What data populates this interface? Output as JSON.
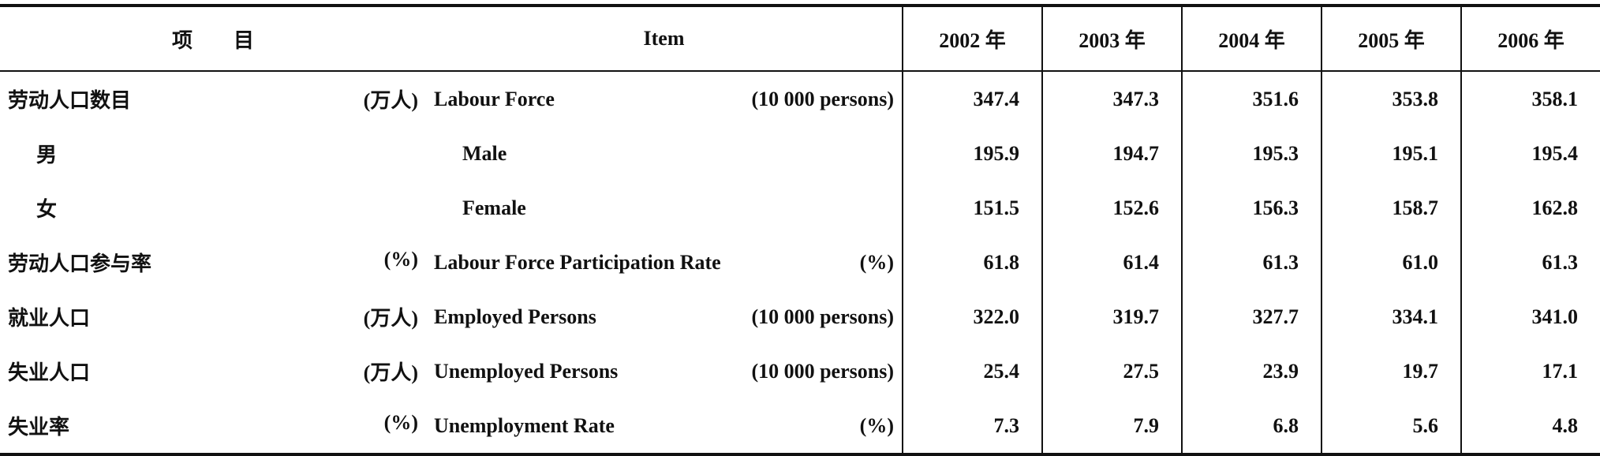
{
  "header": {
    "item_cn": "项　　目",
    "item_en": "Item",
    "years": [
      "2002 年",
      "2003 年",
      "2004 年",
      "2005 年",
      "2006 年"
    ]
  },
  "rows": [
    {
      "cn": "劳动人口数目",
      "cn_unit": "(万人)",
      "en": "Labour Force",
      "en_unit": "(10 000 persons)",
      "values": [
        "347.4",
        "347.3",
        "351.6",
        "353.8",
        "358.1"
      ]
    },
    {
      "cn": "男",
      "en": "Male",
      "sub": true,
      "values": [
        "195.9",
        "194.7",
        "195.3",
        "195.1",
        "195.4"
      ]
    },
    {
      "cn": "女",
      "en": "Female",
      "sub": true,
      "values": [
        "151.5",
        "152.6",
        "156.3",
        "158.7",
        "162.8"
      ]
    },
    {
      "cn": "劳动人口参与率",
      "cn_unit": "(%)",
      "en": "Labour Force Participation Rate",
      "en_unit": "(%)",
      "values": [
        "61.8",
        "61.4",
        "61.3",
        "61.0",
        "61.3"
      ]
    },
    {
      "cn": "就业人口",
      "cn_unit": "(万人)",
      "en": "Employed Persons",
      "en_unit": "(10 000 persons)",
      "values": [
        "322.0",
        "319.7",
        "327.7",
        "334.1",
        "341.0"
      ]
    },
    {
      "cn": "失业人口",
      "cn_unit": "(万人)",
      "en": "Unemployed Persons",
      "en_unit": "(10 000 persons)",
      "values": [
        "25.4",
        "27.5",
        "23.9",
        "19.7",
        "17.1"
      ]
    },
    {
      "cn": "失业率",
      "cn_unit": "(%)",
      "en": "Unemployment Rate",
      "en_unit": "(%)",
      "values": [
        "7.3",
        "7.9",
        "6.8",
        "5.6",
        "4.8"
      ]
    }
  ]
}
